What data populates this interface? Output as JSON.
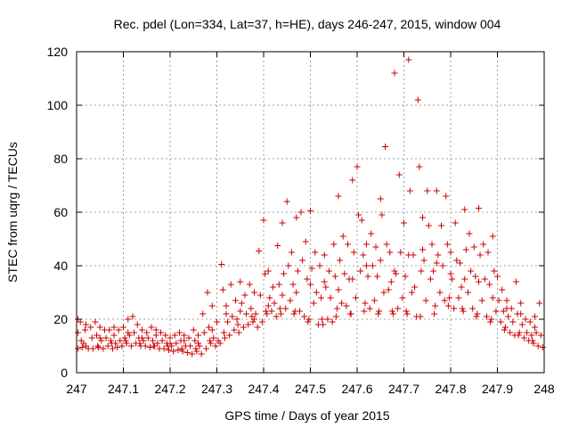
{
  "chart_data": {
    "type": "scatter",
    "title": "Rec. pdel (Lon=334, Lat=37, h=HE), days 246-247, 2015, window 004",
    "xlabel": "GPS time / Days of year 2015",
    "ylabel": "STEC from uqrg / TECUs",
    "xlim": [
      247,
      248
    ],
    "ylim": [
      0,
      120
    ],
    "x_ticks": [
      {
        "value": 247.0,
        "label": "247"
      },
      {
        "value": 247.1,
        "label": "247.1"
      },
      {
        "value": 247.2,
        "label": "247.2"
      },
      {
        "value": 247.3,
        "label": "247.3"
      },
      {
        "value": 247.4,
        "label": "247.4"
      },
      {
        "value": 247.5,
        "label": "247.5"
      },
      {
        "value": 247.6,
        "label": "247.6"
      },
      {
        "value": 247.7,
        "label": "247.7"
      },
      {
        "value": 247.8,
        "label": "247.8"
      },
      {
        "value": 247.9,
        "label": "247.9"
      },
      {
        "value": 248.0,
        "label": "248"
      }
    ],
    "y_ticks": [
      {
        "value": 0,
        "label": "0"
      },
      {
        "value": 20,
        "label": "20"
      },
      {
        "value": 40,
        "label": "40"
      },
      {
        "value": 60,
        "label": "60"
      },
      {
        "value": 80,
        "label": "80"
      },
      {
        "value": 100,
        "label": "100"
      },
      {
        "value": 120,
        "label": "120"
      }
    ],
    "grid": true,
    "marker": "+",
    "colors": {
      "points": "#cc0000",
      "grid": "#a0a0a0",
      "axes": "#000000"
    },
    "points": [
      [
        247.003,
        20
      ],
      [
        247.003,
        15
      ],
      [
        247.003,
        9
      ],
      [
        247.008,
        19
      ],
      [
        247.01,
        12
      ],
      [
        247.012,
        9.5
      ],
      [
        247.018,
        16
      ],
      [
        247.02,
        10
      ],
      [
        247.025,
        9
      ],
      [
        247.03,
        17
      ],
      [
        247.033,
        13
      ],
      [
        247.035,
        9
      ],
      [
        247.04,
        19
      ],
      [
        247.043,
        14
      ],
      [
        247.047,
        9.5
      ],
      [
        247.05,
        17
      ],
      [
        247.053,
        12
      ],
      [
        247.057,
        9
      ],
      [
        247.06,
        16
      ],
      [
        247.063,
        13
      ],
      [
        247.067,
        10
      ],
      [
        247.07,
        16
      ],
      [
        247.073,
        12
      ],
      [
        247.077,
        9
      ],
      [
        247.08,
        17
      ],
      [
        247.083,
        11
      ],
      [
        247.087,
        9.5
      ],
      [
        247.09,
        16
      ],
      [
        247.093,
        12
      ],
      [
        247.097,
        10
      ],
      [
        247.1,
        17
      ],
      [
        247.103,
        13
      ],
      [
        247.107,
        11
      ],
      [
        247.11,
        20
      ],
      [
        247.113,
        14
      ],
      [
        247.117,
        10
      ],
      [
        247.12,
        21
      ],
      [
        247.123,
        15
      ],
      [
        247.127,
        11
      ],
      [
        247.13,
        18
      ],
      [
        247.133,
        13
      ],
      [
        247.137,
        10
      ],
      [
        247.14,
        16
      ],
      [
        247.143,
        12
      ],
      [
        247.147,
        10
      ],
      [
        247.15,
        15
      ],
      [
        247.153,
        13
      ],
      [
        247.157,
        9.5
      ],
      [
        247.16,
        17
      ],
      [
        247.163,
        12
      ],
      [
        247.167,
        10
      ],
      [
        247.17,
        16
      ],
      [
        247.173,
        11
      ],
      [
        247.177,
        9
      ],
      [
        247.18,
        15
      ],
      [
        247.183,
        12
      ],
      [
        247.187,
        9
      ],
      [
        247.19,
        14
      ],
      [
        247.193,
        11
      ],
      [
        247.197,
        8.5
      ],
      [
        247.2,
        13
      ],
      [
        247.203,
        10
      ],
      [
        247.207,
        8
      ],
      [
        247.21,
        14
      ],
      [
        247.213,
        11
      ],
      [
        247.217,
        8.5
      ],
      [
        247.22,
        15
      ],
      [
        247.223,
        12
      ],
      [
        247.227,
        8
      ],
      [
        247.23,
        14
      ],
      [
        247.233,
        10
      ],
      [
        247.237,
        7.5
      ],
      [
        247.24,
        13
      ],
      [
        247.243,
        10
      ],
      [
        247.247,
        7
      ],
      [
        247.25,
        16
      ],
      [
        247.253,
        12
      ],
      [
        247.257,
        8
      ],
      [
        247.26,
        14
      ],
      [
        247.263,
        10
      ],
      [
        247.267,
        7
      ],
      [
        247.27,
        22
      ],
      [
        247.273,
        15
      ],
      [
        247.277,
        9
      ],
      [
        247.28,
        30
      ],
      [
        247.283,
        17
      ],
      [
        247.287,
        11
      ],
      [
        247.29,
        25
      ],
      [
        247.293,
        13
      ],
      [
        247.297,
        10
      ],
      [
        247.3,
        19
      ],
      [
        247.303,
        12
      ],
      [
        247.307,
        11
      ],
      [
        247.31,
        40.5
      ],
      [
        247.313,
        31
      ],
      [
        247.317,
        13
      ],
      [
        247.32,
        25
      ],
      [
        247.323,
        19
      ],
      [
        247.327,
        14
      ],
      [
        247.33,
        33
      ],
      [
        247.333,
        21
      ],
      [
        247.337,
        16
      ],
      [
        247.34,
        27
      ],
      [
        247.343,
        20
      ],
      [
        247.347,
        15
      ],
      [
        247.35,
        34
      ],
      [
        247.353,
        26
      ],
      [
        247.357,
        17
      ],
      [
        247.36,
        29
      ],
      [
        247.363,
        22
      ],
      [
        247.367,
        18
      ],
      [
        247.37,
        33
      ],
      [
        247.373,
        24
      ],
      [
        247.377,
        19
      ],
      [
        247.38,
        30
      ],
      [
        247.383,
        22
      ],
      [
        247.387,
        17
      ],
      [
        247.39,
        45.5
      ],
      [
        247.393,
        29
      ],
      [
        247.397,
        19
      ],
      [
        247.4,
        57
      ],
      [
        247.403,
        37
      ],
      [
        247.407,
        22
      ],
      [
        247.41,
        38
      ],
      [
        247.413,
        28
      ],
      [
        247.417,
        23
      ],
      [
        247.42,
        32
      ],
      [
        247.423,
        26
      ],
      [
        247.427,
        21
      ],
      [
        247.43,
        47.5
      ],
      [
        247.433,
        33
      ],
      [
        247.437,
        22
      ],
      [
        247.44,
        56
      ],
      [
        247.443,
        37
      ],
      [
        247.447,
        24
      ],
      [
        247.45,
        64
      ],
      [
        247.453,
        40
      ],
      [
        247.457,
        27
      ],
      [
        247.46,
        45
      ],
      [
        247.463,
        33
      ],
      [
        247.467,
        23
      ],
      [
        247.47,
        58
      ],
      [
        247.473,
        38
      ],
      [
        247.477,
        23
      ],
      [
        247.48,
        60
      ],
      [
        247.483,
        42
      ],
      [
        247.487,
        21
      ],
      [
        247.49,
        49
      ],
      [
        247.493,
        35
      ],
      [
        247.497,
        20
      ],
      [
        247.5,
        60.5
      ],
      [
        247.503,
        39
      ],
      [
        247.507,
        26
      ],
      [
        247.51,
        45
      ],
      [
        247.513,
        30
      ],
      [
        247.517,
        18
      ],
      [
        247.52,
        40
      ],
      [
        247.523,
        28
      ],
      [
        247.527,
        18
      ],
      [
        247.53,
        44
      ],
      [
        247.533,
        32
      ],
      [
        247.537,
        20
      ],
      [
        247.54,
        38
      ],
      [
        247.543,
        28
      ],
      [
        247.547,
        19
      ],
      [
        247.55,
        48
      ],
      [
        247.553,
        36
      ],
      [
        247.557,
        24
      ],
      [
        247.56,
        66
      ],
      [
        247.563,
        42
      ],
      [
        247.567,
        26
      ],
      [
        247.57,
        51
      ],
      [
        247.573,
        37
      ],
      [
        247.577,
        25
      ],
      [
        247.58,
        48
      ],
      [
        247.583,
        35
      ],
      [
        247.587,
        22
      ],
      [
        247.59,
        72
      ],
      [
        247.593,
        45
      ],
      [
        247.597,
        28
      ],
      [
        247.6,
        77
      ],
      [
        247.603,
        59
      ],
      [
        247.607,
        38
      ],
      [
        247.61,
        57
      ],
      [
        247.613,
        44
      ],
      [
        247.617,
        26
      ],
      [
        247.62,
        48
      ],
      [
        247.623,
        36
      ],
      [
        247.627,
        24
      ],
      [
        247.63,
        52
      ],
      [
        247.633,
        40
      ],
      [
        247.637,
        27
      ],
      [
        247.64,
        47
      ],
      [
        247.643,
        36
      ],
      [
        247.647,
        23
      ],
      [
        247.65,
        65
      ],
      [
        247.653,
        59
      ],
      [
        247.657,
        30
      ],
      [
        247.66,
        84.5
      ],
      [
        247.663,
        48
      ],
      [
        247.667,
        31
      ],
      [
        247.67,
        45
      ],
      [
        247.673,
        34
      ],
      [
        247.677,
        22
      ],
      [
        247.68,
        112
      ],
      [
        247.683,
        37
      ],
      [
        247.687,
        24
      ],
      [
        247.69,
        74
      ],
      [
        247.693,
        45
      ],
      [
        247.697,
        28
      ],
      [
        247.7,
        56
      ],
      [
        247.703,
        36
      ],
      [
        247.707,
        22
      ],
      [
        247.71,
        117
      ],
      [
        247.713,
        68
      ],
      [
        247.717,
        30
      ],
      [
        247.72,
        44
      ],
      [
        247.723,
        32
      ],
      [
        247.727,
        21
      ],
      [
        247.73,
        102
      ],
      [
        247.733,
        77
      ],
      [
        247.737,
        38
      ],
      [
        247.74,
        58
      ],
      [
        247.743,
        42
      ],
      [
        247.747,
        27
      ],
      [
        247.75,
        68
      ],
      [
        247.753,
        55
      ],
      [
        247.757,
        35
      ],
      [
        247.76,
        48
      ],
      [
        247.763,
        38
      ],
      [
        247.767,
        25
      ],
      [
        247.77,
        68
      ],
      [
        247.773,
        44
      ],
      [
        247.777,
        30
      ],
      [
        247.78,
        55
      ],
      [
        247.783,
        40
      ],
      [
        247.787,
        27
      ],
      [
        247.79,
        66
      ],
      [
        247.793,
        48
      ],
      [
        247.797,
        28
      ],
      [
        247.8,
        45
      ],
      [
        247.803,
        35
      ],
      [
        247.807,
        24
      ],
      [
        247.81,
        56
      ],
      [
        247.813,
        42
      ],
      [
        247.817,
        28
      ],
      [
        247.82,
        41
      ],
      [
        247.823,
        32
      ],
      [
        247.827,
        23
      ],
      [
        247.83,
        61
      ],
      [
        247.833,
        46
      ],
      [
        247.837,
        30
      ],
      [
        247.84,
        52
      ],
      [
        247.843,
        38
      ],
      [
        247.847,
        24
      ],
      [
        247.85,
        47
      ],
      [
        247.853,
        36
      ],
      [
        247.857,
        22
      ],
      [
        247.86,
        61.5
      ],
      [
        247.863,
        44
      ],
      [
        247.867,
        27
      ],
      [
        247.87,
        48
      ],
      [
        247.873,
        35
      ],
      [
        247.877,
        21
      ],
      [
        247.88,
        45
      ],
      [
        247.883,
        33
      ],
      [
        247.887,
        20
      ],
      [
        247.89,
        51
      ],
      [
        247.893,
        38
      ],
      [
        247.897,
        23
      ],
      [
        247.9,
        36
      ],
      [
        247.903,
        27
      ],
      [
        247.907,
        19
      ],
      [
        247.91,
        31
      ],
      [
        247.913,
        23
      ],
      [
        247.917,
        17
      ],
      [
        247.92,
        27
      ],
      [
        247.923,
        21
      ],
      [
        247.927,
        15
      ],
      [
        247.93,
        24
      ],
      [
        247.933,
        19
      ],
      [
        247.937,
        14
      ],
      [
        247.94,
        34
      ],
      [
        247.943,
        22
      ],
      [
        247.947,
        15
      ],
      [
        247.95,
        26
      ],
      [
        247.953,
        18
      ],
      [
        247.957,
        13
      ],
      [
        247.96,
        20
      ],
      [
        247.963,
        15
      ],
      [
        247.967,
        12
      ],
      [
        247.97,
        19
      ],
      [
        247.973,
        14
      ],
      [
        247.977,
        11
      ],
      [
        247.98,
        21
      ],
      [
        247.983,
        15
      ],
      [
        247.987,
        10
      ],
      [
        247.99,
        26
      ],
      [
        247.993,
        14
      ],
      [
        247.997,
        9.5
      ],
      [
        247.02,
        18
      ],
      [
        247.05,
        13
      ],
      [
        247.08,
        14
      ],
      [
        247.11,
        15
      ],
      [
        247.14,
        13
      ],
      [
        247.17,
        14
      ],
      [
        247.2,
        11
      ],
      [
        247.23,
        12
      ],
      [
        247.26,
        11
      ],
      [
        247.29,
        16
      ],
      [
        247.32,
        22
      ],
      [
        247.35,
        23
      ],
      [
        247.38,
        20
      ],
      [
        247.41,
        25
      ],
      [
        247.44,
        29
      ],
      [
        247.47,
        30
      ],
      [
        247.5,
        33
      ],
      [
        247.53,
        34
      ],
      [
        247.56,
        31
      ],
      [
        247.59,
        35
      ],
      [
        247.62,
        40
      ],
      [
        247.65,
        42
      ],
      [
        247.68,
        38
      ],
      [
        247.71,
        44
      ],
      [
        247.74,
        46
      ],
      [
        247.77,
        41
      ],
      [
        247.8,
        37
      ],
      [
        247.83,
        35
      ],
      [
        247.86,
        34
      ],
      [
        247.89,
        28
      ],
      [
        247.92,
        24
      ],
      [
        247.95,
        22
      ],
      [
        247.98,
        17
      ],
      [
        247.015,
        11
      ],
      [
        247.045,
        10
      ],
      [
        247.075,
        11
      ],
      [
        247.105,
        12
      ],
      [
        247.135,
        11
      ],
      [
        247.165,
        10
      ],
      [
        247.195,
        10
      ],
      [
        247.225,
        9
      ],
      [
        247.255,
        9
      ],
      [
        247.285,
        12
      ],
      [
        247.315,
        15
      ],
      [
        247.345,
        18
      ],
      [
        247.375,
        21
      ],
      [
        247.405,
        23
      ],
      [
        247.435,
        24
      ],
      [
        247.465,
        22
      ],
      [
        247.495,
        19
      ],
      [
        247.525,
        20
      ],
      [
        247.555,
        21
      ],
      [
        247.585,
        22
      ],
      [
        247.615,
        23
      ],
      [
        247.645,
        22
      ],
      [
        247.675,
        23
      ],
      [
        247.705,
        23
      ],
      [
        247.735,
        21
      ],
      [
        247.765,
        22
      ],
      [
        247.795,
        25
      ],
      [
        247.825,
        24
      ],
      [
        247.855,
        21
      ],
      [
        247.885,
        19
      ],
      [
        247.915,
        16
      ],
      [
        247.945,
        14
      ],
      [
        247.975,
        12
      ]
    ]
  }
}
